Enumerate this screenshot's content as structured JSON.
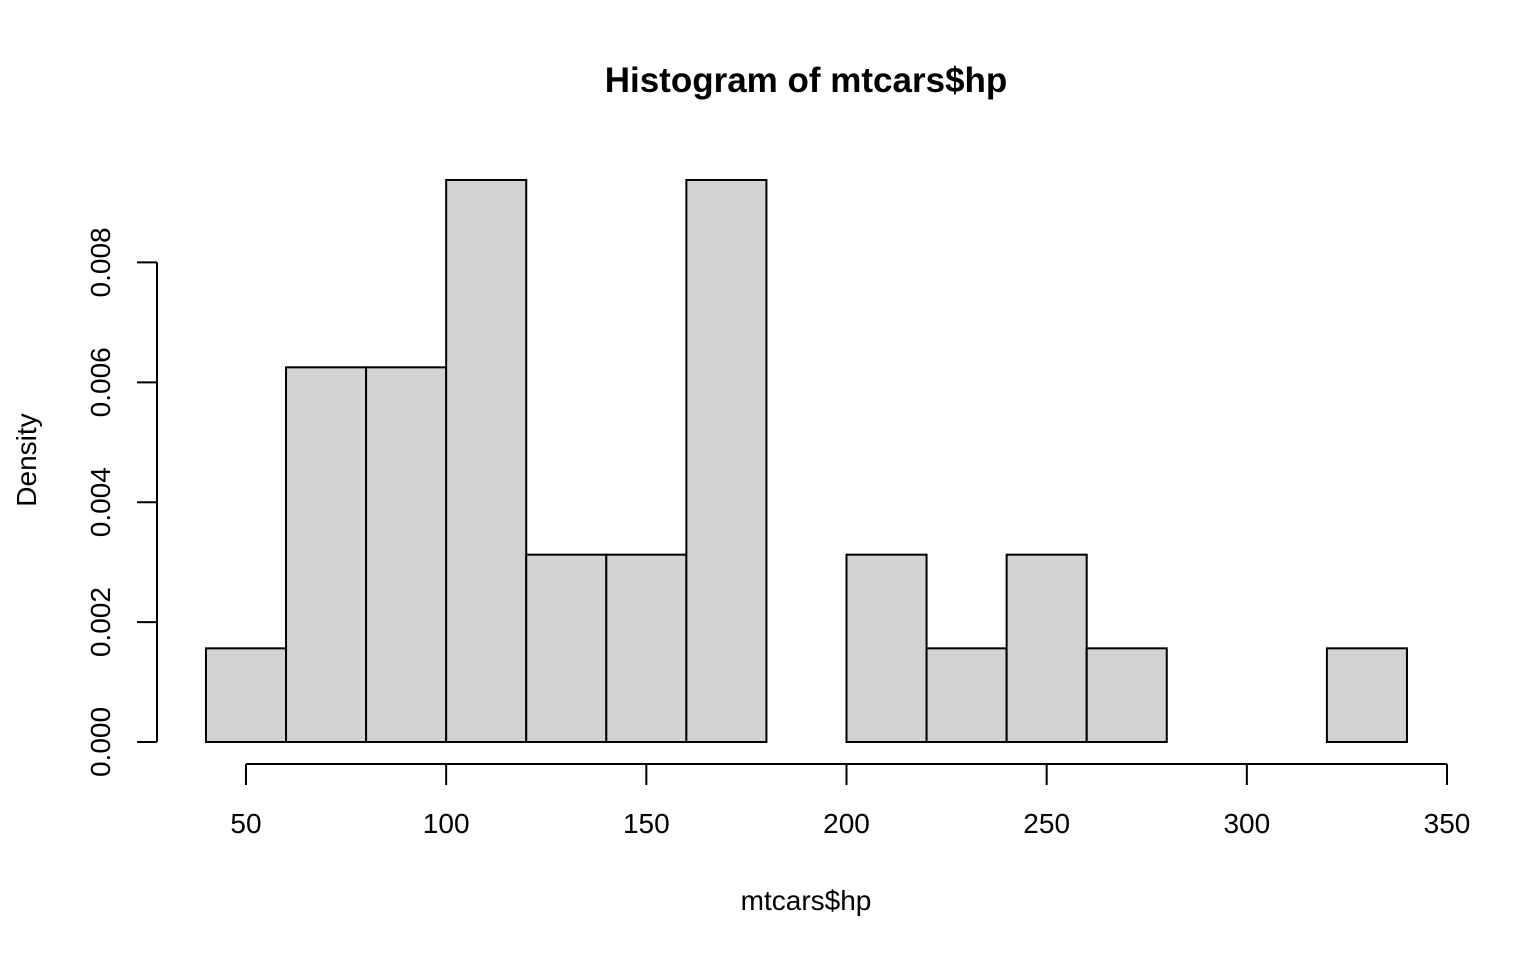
{
  "chart_data": {
    "type": "bar",
    "title": "Histogram of mtcars$hp",
    "xlabel": "mtcars$hp",
    "ylabel": "Density",
    "bin_edges": [
      40,
      60,
      80,
      100,
      120,
      140,
      160,
      180,
      200,
      220,
      240,
      260,
      280,
      300,
      320,
      340
    ],
    "values": [
      0.0015625,
      0.00625,
      0.00625,
      0.009375,
      0.003125,
      0.003125,
      0.009375,
      0.0,
      0.003125,
      0.0015625,
      0.003125,
      0.0015625,
      0.0,
      0.0,
      0.0015625
    ],
    "xlim": [
      50,
      350
    ],
    "ylim": [
      0,
      0.009375
    ],
    "x_ticks": [
      50,
      100,
      150,
      200,
      250,
      300,
      350
    ],
    "x_tick_labels": [
      "50",
      "100",
      "150",
      "200",
      "250",
      "300",
      "350"
    ],
    "y_ticks": [
      0,
      0.002,
      0.004,
      0.006,
      0.008
    ],
    "y_tick_labels": [
      "0.000",
      "0.002",
      "0.004",
      "0.006",
      "0.008"
    ],
    "grid": false,
    "legend": "none",
    "colors": {
      "bar_fill": "#d3d3d3",
      "bar_stroke": "#000000",
      "axis": "#000000"
    }
  }
}
